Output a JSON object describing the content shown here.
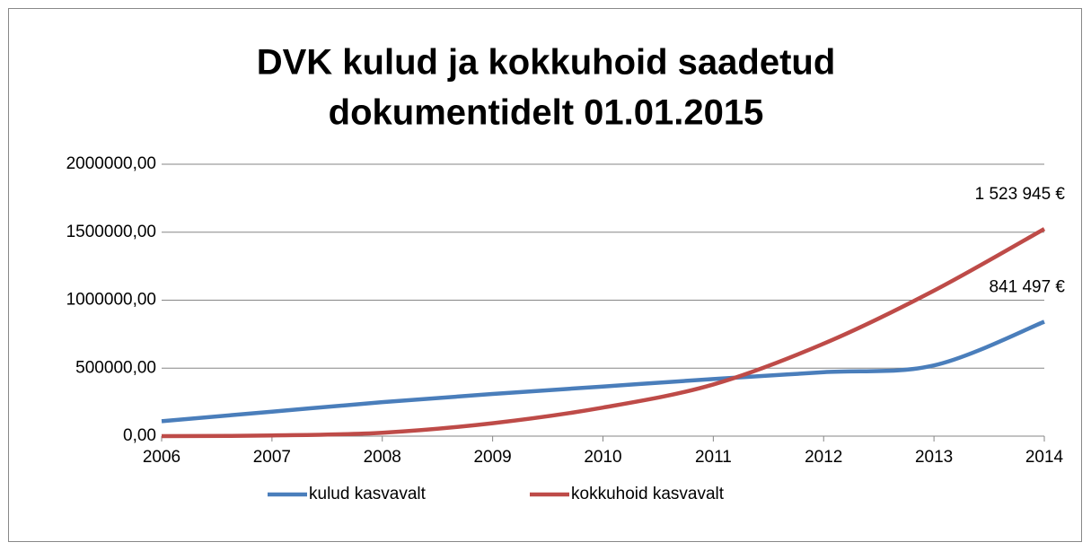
{
  "chart_data": {
    "type": "line",
    "title": [
      "DVK kulud ja kokkuhoid saadetud",
      "dokumentidelt 01.01.2015"
    ],
    "x": [
      2006,
      2007,
      2008,
      2009,
      2010,
      2011,
      2012,
      2013,
      2014
    ],
    "xlim": [
      2006,
      2014
    ],
    "xticks": [
      2006,
      2007,
      2008,
      2009,
      2010,
      2011,
      2012,
      2013,
      2014
    ],
    "ylim": [
      0,
      2000000
    ],
    "yticks": [
      {
        "value": 0,
        "label": "0,00"
      },
      {
        "value": 500000,
        "label": "500000,00"
      },
      {
        "value": 1000000,
        "label": "1000000,00"
      },
      {
        "value": 1500000,
        "label": "1500000,00"
      },
      {
        "value": 2000000,
        "label": "2000000,00"
      }
    ],
    "grid": true,
    "smooth": true,
    "legend": "bottom",
    "series": [
      {
        "name": "kulud kasvavalt",
        "color": "#4a7ebb",
        "values": [
          110000,
          180000,
          250000,
          310000,
          365000,
          420000,
          470000,
          520000,
          841497
        ],
        "value_labels": [
          null,
          null,
          null,
          null,
          null,
          null,
          null,
          null,
          "841 497 €"
        ]
      },
      {
        "name": "kokkuhoid kasvavalt",
        "color": "#be4b48",
        "values": [
          0,
          5000,
          25000,
          95000,
          210000,
          380000,
          680000,
          1070000,
          1523945
        ],
        "value_labels": [
          null,
          null,
          null,
          null,
          null,
          null,
          null,
          null,
          "1 523 945 €"
        ]
      }
    ]
  }
}
